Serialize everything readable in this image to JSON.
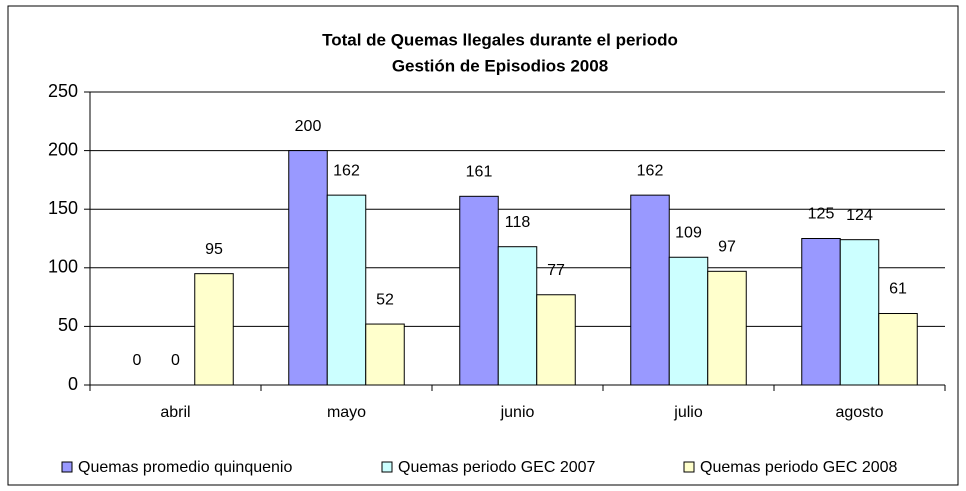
{
  "chart_data": {
    "type": "bar",
    "title": "Total de Quemas llegales durante el periodo",
    "subtitle": "Gestión de Episodios 2008",
    "categories": [
      "abril",
      "mayo",
      "junio",
      "julio",
      "agosto"
    ],
    "series": [
      {
        "name": "Quemas promedio quinquenio",
        "color": "#9999ff",
        "values": [
          0,
          200,
          161,
          162,
          125
        ]
      },
      {
        "name": "Quemas periodo GEC 2007",
        "color": "#ccffff",
        "values": [
          0,
          162,
          118,
          109,
          124
        ]
      },
      {
        "name": "Quemas periodo GEC 2008",
        "color": "#ffffcc",
        "values": [
          95,
          52,
          77,
          97,
          61
        ]
      }
    ],
    "ylim": [
      0,
      250
    ],
    "yticks": [
      0,
      50,
      100,
      150,
      200,
      250
    ],
    "grid": true,
    "legend": "bottom"
  }
}
